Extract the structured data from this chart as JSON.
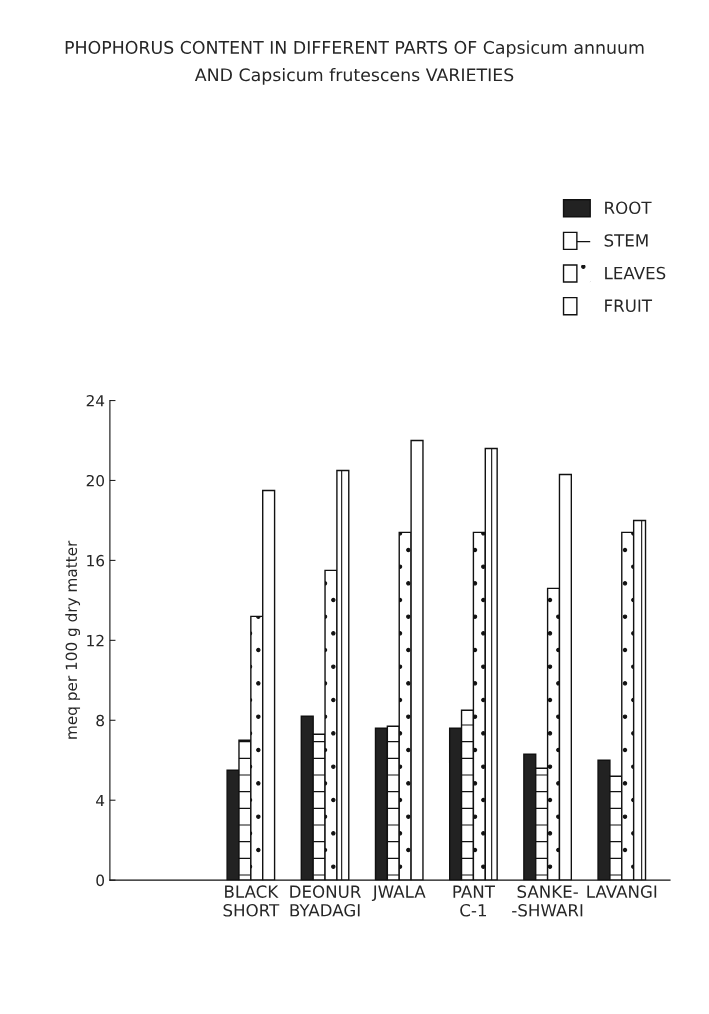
{
  "chart_data": {
    "type": "bar",
    "title": "PHOPHORUS CONTENT IN DIFFERENT PARTS OF Capsicum annuum\nAND Capsicum frutescens VARIETIES",
    "ylabel": "meq per 100 g dry matter",
    "categories": [
      "BLACK\nSHORT",
      "DEONUR\nBYADAGI",
      "JWALA",
      "PANT\nC-1",
      "SANKE-\n-SHWARI",
      "LAVANGI"
    ],
    "series": [
      {
        "name": "ROOT",
        "color": "#222222",
        "values": [
          5.5,
          8.2,
          7.6,
          7.6,
          6.3,
          6.0
        ]
      },
      {
        "name": "STEM",
        "color": "#ffffff",
        "values": [
          7.0,
          7.3,
          7.7,
          8.5,
          5.6,
          5.2
        ]
      },
      {
        "name": "LEAVES",
        "color": "#ffffff",
        "values": [
          13.2,
          15.5,
          17.4,
          17.4,
          14.6,
          17.4
        ]
      },
      {
        "name": "FRUIT",
        "color": "#ffffff",
        "values": [
          19.5,
          20.5,
          22.0,
          21.6,
          20.3,
          18.0
        ]
      }
    ],
    "ylim": [
      0,
      24
    ],
    "yticks": [
      0,
      4,
      8,
      12,
      16,
      20,
      24
    ],
    "grid": false,
    "legend": "top right"
  }
}
